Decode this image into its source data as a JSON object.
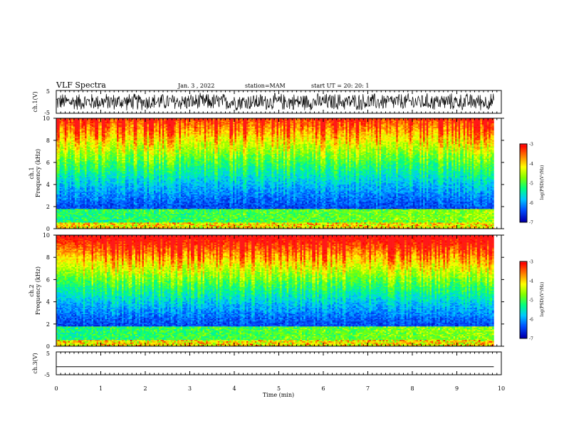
{
  "header": {
    "title": "VLF Spectra",
    "date": "Jan. 3 , 2022",
    "station": "station=MAM",
    "start": "start UT =  20: 20: 1"
  },
  "colors": {
    "colormap": [
      "#000033",
      "#0000b4",
      "#0050ff",
      "#00c8ff",
      "#00ff80",
      "#80ff00",
      "#ffff00",
      "#ff8000",
      "#ff0000",
      "#ffffff"
    ]
  },
  "chart_data": [
    {
      "type": "line",
      "panel": "ch1-waveform",
      "ylabel": "ch.1(V)",
      "yticks": [
        "5",
        "-5"
      ],
      "ylim": [
        -5,
        5
      ],
      "xlim": [
        0,
        10
      ],
      "description_values": "dense noise signal, amplitude approx ±4 V, recorded 0–9.83 min"
    },
    {
      "type": "heatmap",
      "panel": "ch1-spectrogram",
      "ylabel": "ch.1\nFrequency (kHz)",
      "ylabel_line1": "ch.1",
      "ylabel_line2": "Frequency (kHz)",
      "yticks": [
        "0",
        "2",
        "4",
        "6",
        "8",
        "10"
      ],
      "ylim": [
        0,
        10
      ],
      "xlim": [
        0,
        10
      ],
      "colorbar": {
        "label": "log(PSD)(V²/Hz)",
        "ticks": [
          "-3",
          "-4",
          "-5",
          "-6",
          "-7"
        ],
        "range": [
          -7,
          -3
        ]
      }
    },
    {
      "type": "heatmap",
      "panel": "ch2-spectrogram",
      "ylabel_line1": "ch.2",
      "ylabel_line2": "Frequency (kHz)",
      "yticks": [
        "0",
        "2",
        "4",
        "6",
        "8",
        "10"
      ],
      "ylim": [
        0,
        10
      ],
      "xlim": [
        0,
        10
      ],
      "colorbar": {
        "label": "log(PSD)(V²/Hz)",
        "ticks": [
          "-3",
          "-4",
          "-5",
          "-6",
          "-7"
        ],
        "range": [
          -7,
          -3
        ]
      }
    },
    {
      "type": "line",
      "panel": "ch3-waveform",
      "ylabel": "ch.3(V)",
      "yticks": [
        "5",
        "-5"
      ],
      "ylim": [
        -5,
        5
      ],
      "xlim": [
        0,
        10
      ],
      "x": [
        0,
        9.83
      ],
      "y": [
        -1.5,
        -1.5
      ]
    }
  ],
  "xaxis": {
    "label": "Time (min)",
    "ticks": [
      "0",
      "1",
      "2",
      "3",
      "4",
      "5",
      "6",
      "7",
      "8",
      "9",
      "10"
    ]
  }
}
